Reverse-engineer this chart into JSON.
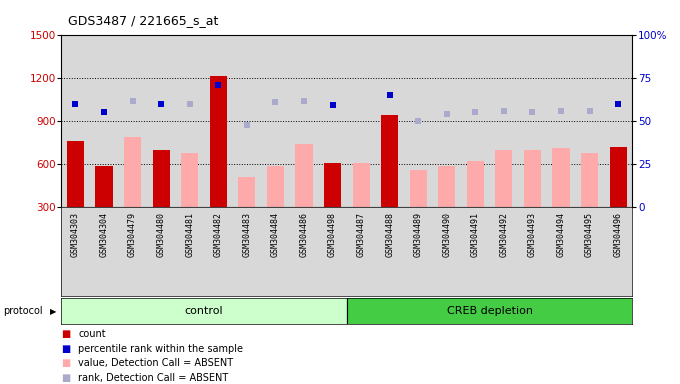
{
  "title": "GDS3487 / 221665_s_at",
  "samples": [
    "GSM304303",
    "GSM304304",
    "GSM304479",
    "GSM304480",
    "GSM304481",
    "GSM304482",
    "GSM304483",
    "GSM304484",
    "GSM304486",
    "GSM304498",
    "GSM304487",
    "GSM304488",
    "GSM304489",
    "GSM304490",
    "GSM304491",
    "GSM304492",
    "GSM304493",
    "GSM304494",
    "GSM304495",
    "GSM304496"
  ],
  "count_values": [
    760,
    590,
    null,
    700,
    null,
    1210,
    null,
    null,
    null,
    610,
    null,
    940,
    null,
    null,
    null,
    null,
    null,
    null,
    null,
    720
  ],
  "absent_values": [
    null,
    null,
    790,
    null,
    680,
    null,
    510,
    590,
    740,
    null,
    610,
    null,
    560,
    590,
    620,
    700,
    700,
    710,
    680,
    null
  ],
  "rank_present_values": [
    1020,
    960,
    null,
    1020,
    null,
    1150,
    null,
    null,
    null,
    1010,
    null,
    1080,
    null,
    null,
    null,
    null,
    null,
    null,
    null,
    1020
  ],
  "rank_absent_values": [
    null,
    null,
    1040,
    null,
    1020,
    null,
    870,
    1030,
    1040,
    null,
    null,
    null,
    900,
    950,
    960,
    970,
    960,
    970,
    970,
    null
  ],
  "control_count": 10,
  "total_count": 20,
  "ylim_left": [
    300,
    1500
  ],
  "ylim_right": [
    0,
    100
  ],
  "yticks_left": [
    300,
    600,
    900,
    1200,
    1500
  ],
  "yticks_right": [
    0,
    25,
    50,
    75,
    100
  ],
  "ytick_right_labels": [
    "0",
    "25",
    "50",
    "75",
    "100%"
  ],
  "grid_values": [
    600,
    900,
    1200
  ],
  "bar_color_count": "#cc0000",
  "bar_color_absent": "#ffaaaa",
  "dot_color_present": "#0000cc",
  "dot_color_absent": "#aaaacc",
  "bg_color": "#d8d8d8",
  "control_bg": "#ccffcc",
  "creb_bg": "#44cc44",
  "ylabel_left_color": "#cc0000",
  "ylabel_right_color": "#0000cc",
  "bar_width": 0.6,
  "dot_size": 5,
  "legend_items": [
    {
      "color": "#cc0000",
      "label": "count"
    },
    {
      "color": "#0000cc",
      "label": "percentile rank within the sample"
    },
    {
      "color": "#ffaaaa",
      "label": "value, Detection Call = ABSENT"
    },
    {
      "color": "#aaaacc",
      "label": "rank, Detection Call = ABSENT"
    }
  ]
}
